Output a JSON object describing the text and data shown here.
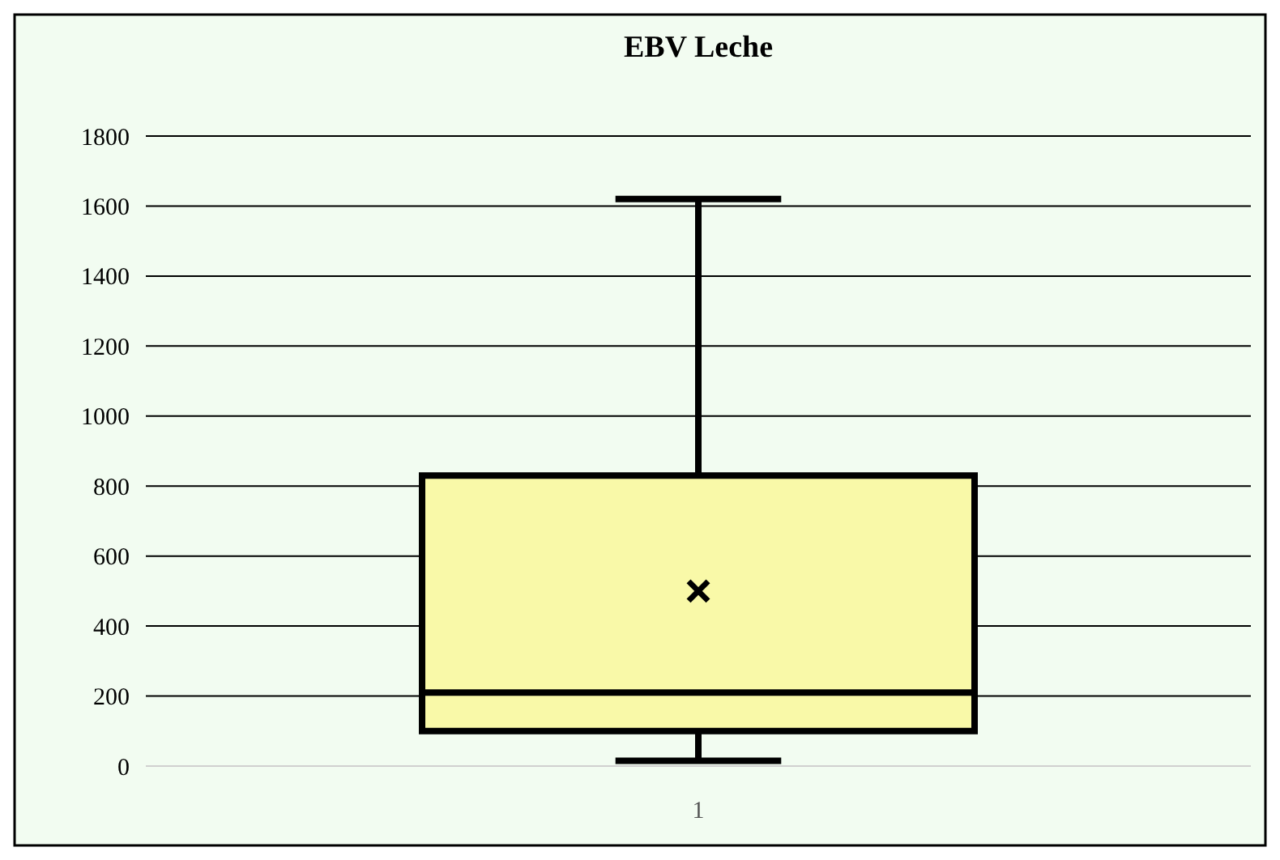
{
  "chart_data": {
    "type": "box",
    "title": "EBV Leche",
    "categories": [
      "1"
    ],
    "boxes": [
      {
        "low": 15,
        "q1": 100,
        "median": 210,
        "q3": 830,
        "high": 1620,
        "mean": 500
      }
    ],
    "color": "#f9f9a8",
    "ylim": [
      0,
      1800
    ],
    "yticks": [
      0,
      200,
      400,
      600,
      800,
      1000,
      1200,
      1400,
      1600,
      1800
    ],
    "grid": "y"
  }
}
